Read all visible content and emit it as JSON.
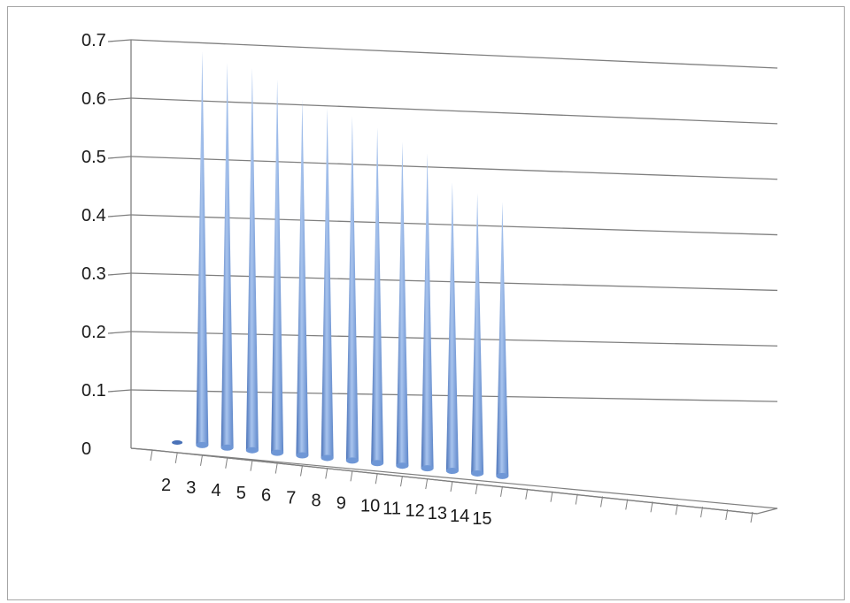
{
  "chart_data": {
    "type": "bar",
    "title": "",
    "xlabel": "",
    "ylabel": "",
    "categories": [
      "2",
      "3",
      "4",
      "5",
      "6",
      "7",
      "8",
      "9",
      "10",
      "11",
      "12",
      "13",
      "14",
      "15"
    ],
    "values": [
      0,
      0.675,
      0.66,
      0.655,
      0.64,
      0.61,
      0.6,
      0.59,
      0.575,
      0.555,
      0.54,
      0.495,
      0.48,
      0.47
    ],
    "ylim": [
      0,
      0.7
    ],
    "yticks": [
      "0",
      "0.1",
      "0.2",
      "0.3",
      "0.4",
      "0.5",
      "0.6",
      "0.7"
    ],
    "grid": true,
    "bar_shape": "cone",
    "colors": {
      "bar": "#6f97d6",
      "bar_highlight": "#a8c4ee",
      "bar_shadow": "#4a72b8",
      "grid": "#7f7f7f"
    }
  }
}
